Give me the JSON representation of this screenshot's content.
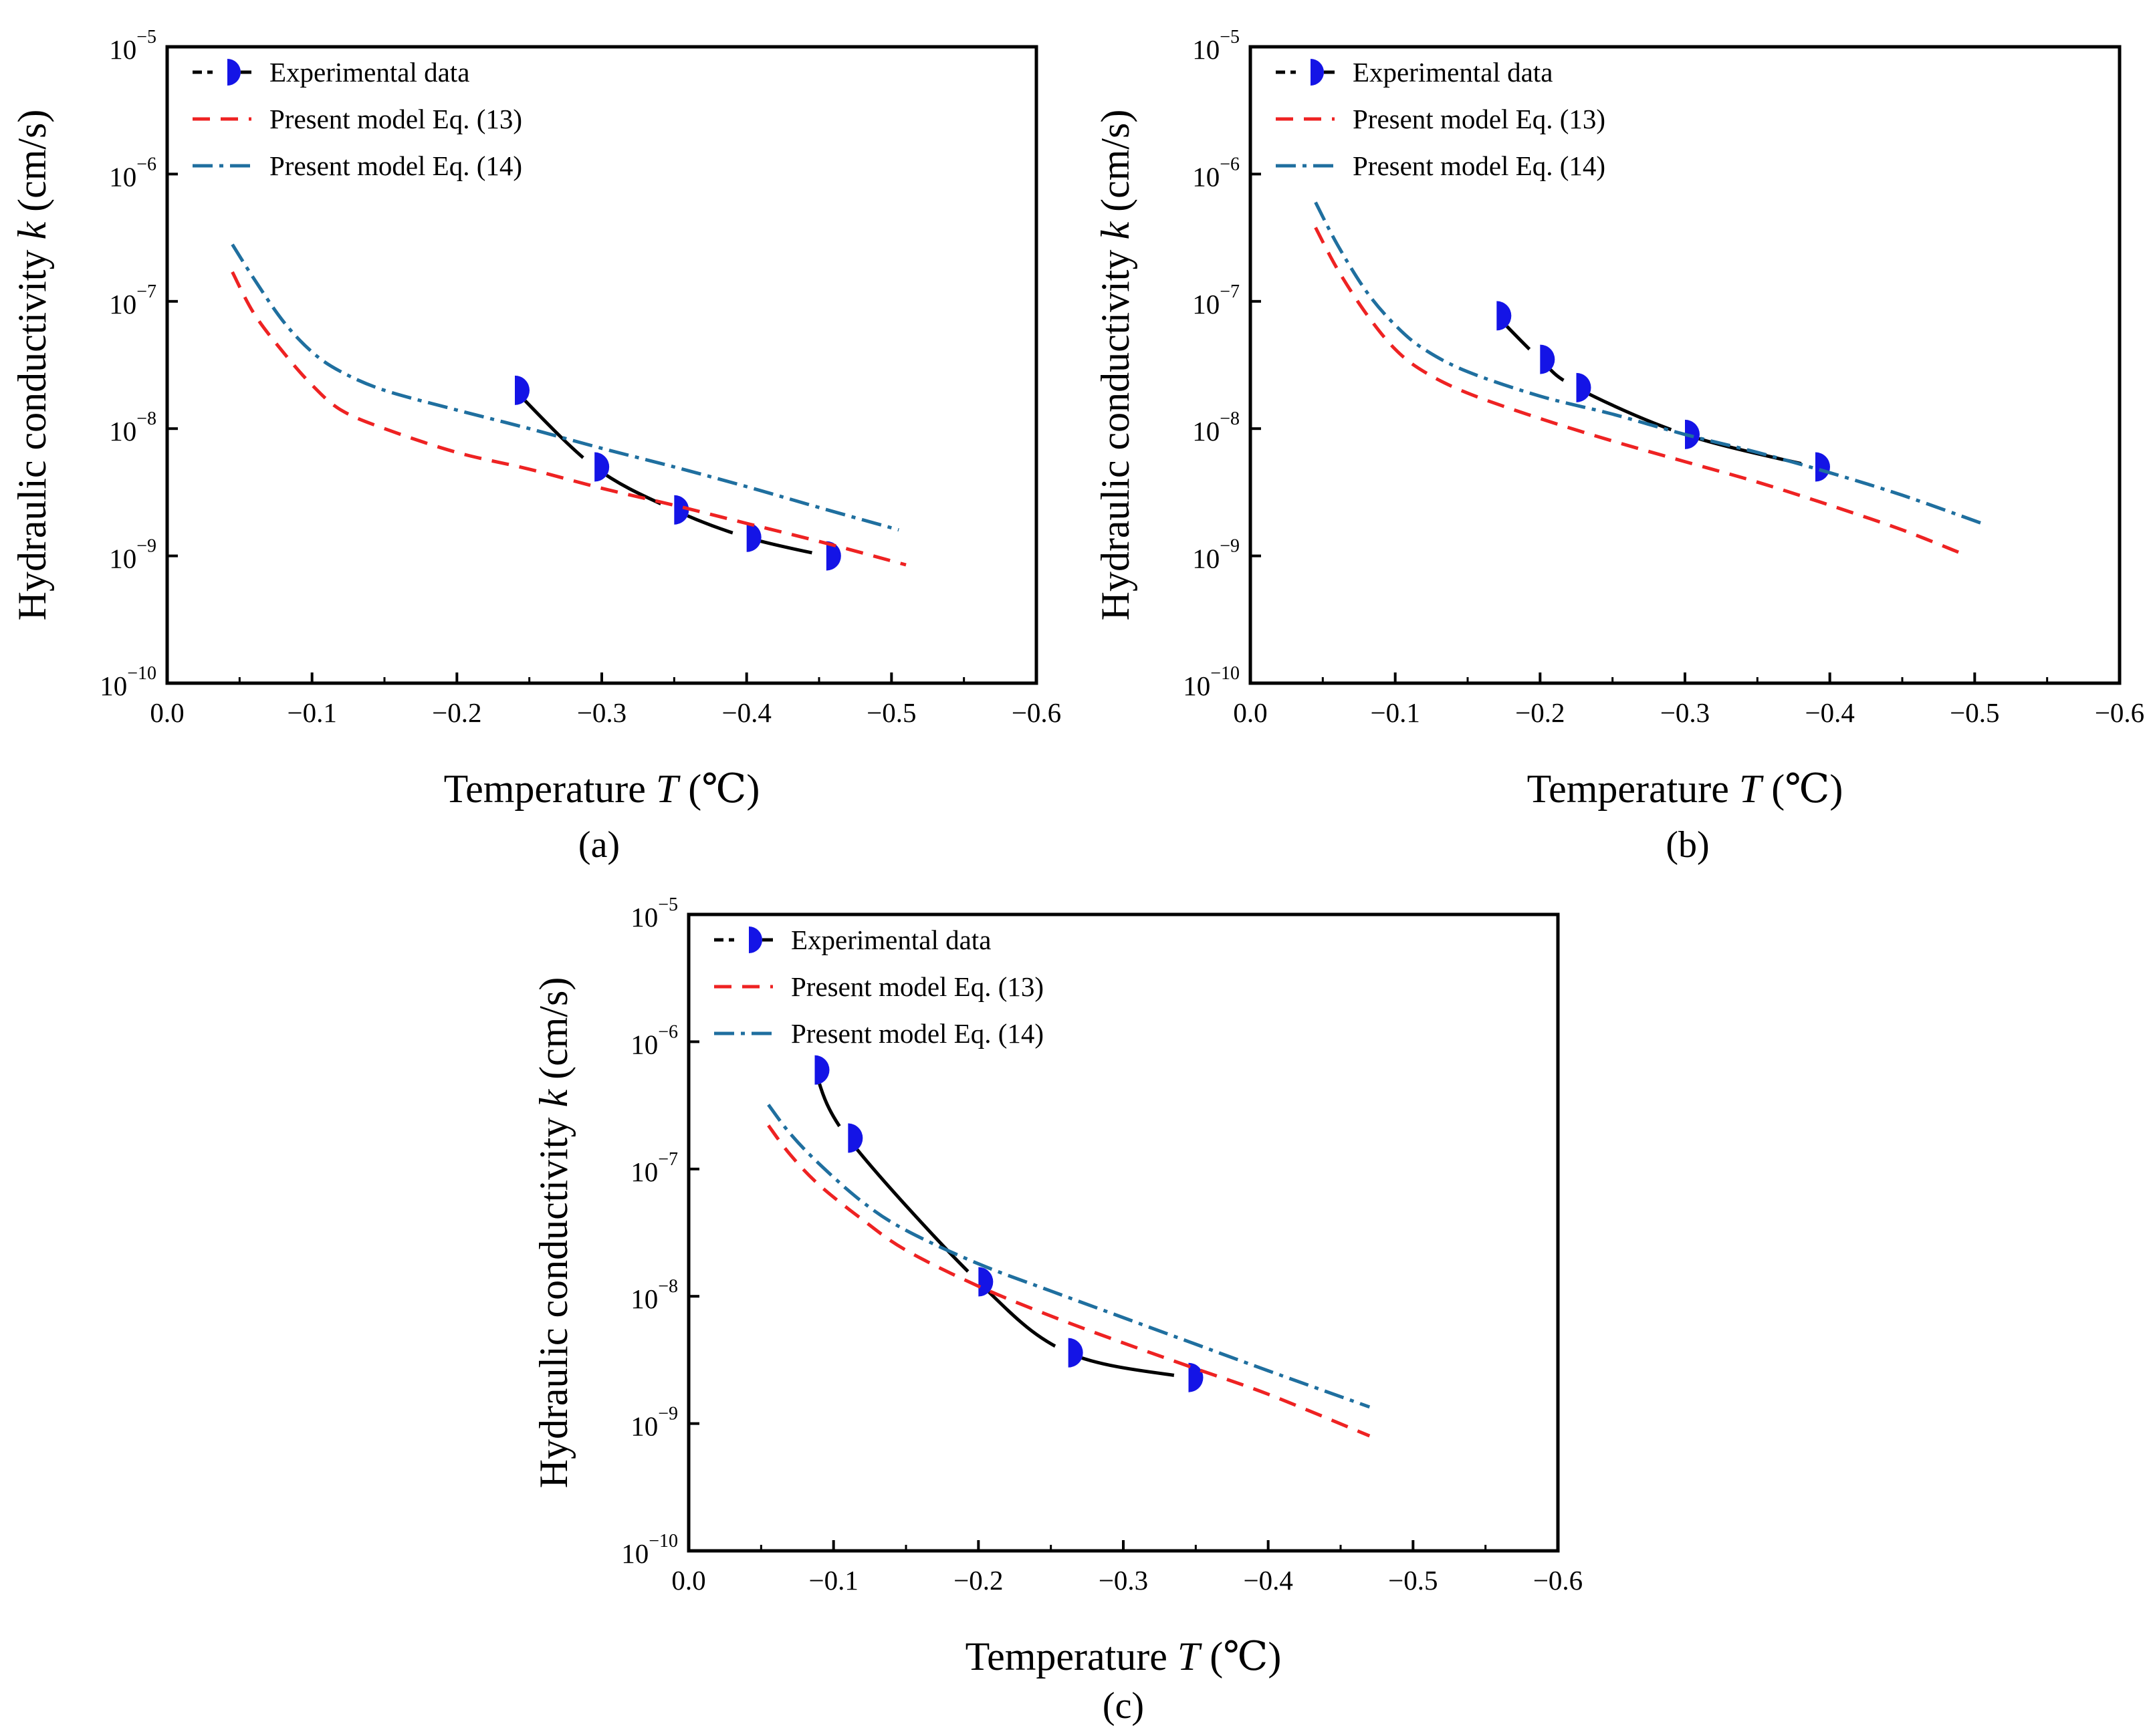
{
  "figure": {
    "panels": [
      "(a)",
      "(b)",
      "(c)"
    ]
  },
  "chart_data": [
    {
      "panel": "(a)",
      "type": "line",
      "xlabel": "Temperature T (℃)",
      "ylabel": "Hydraulic conductivity k (cm/s)",
      "x_ticks": [
        "0.0",
        "−0.1",
        "−0.2",
        "−0.3",
        "−0.4",
        "−0.5",
        "−0.6"
      ],
      "y_ticks": [
        "−10",
        "−9",
        "−8",
        "−7",
        "−6",
        "−5"
      ],
      "xlim": [
        0,
        -0.6
      ],
      "ylim": [
        1e-10,
        1e-05
      ],
      "y_scale": "log",
      "legend": {
        "placement": "top-left"
      },
      "series": [
        {
          "name": "Experimental data",
          "style": "solid-line-half-filled-circle",
          "color": "#000000",
          "marker_color": "#1414e6",
          "x": [
            -0.24,
            -0.295,
            -0.35,
            -0.4,
            -0.455
          ],
          "y": [
            2e-08,
            5e-09,
            2.3e-09,
            1.4e-09,
            1e-09
          ]
        },
        {
          "name": "Present model Eq. (13)",
          "style": "dashed",
          "color": "#ee2222",
          "x": [
            -0.045,
            -0.06,
            -0.08,
            -0.1,
            -0.12,
            -0.15,
            -0.2,
            -0.25,
            -0.3,
            -0.35,
            -0.4,
            -0.45,
            -0.51
          ],
          "y": [
            1.7e-07,
            8e-08,
            4e-08,
            2.2e-08,
            1.4e-08,
            1e-08,
            6.5e-09,
            4.8e-09,
            3.4e-09,
            2.5e-09,
            1.8e-09,
            1.3e-09,
            8.5e-10
          ]
        },
        {
          "name": "Present model Eq. (14)",
          "style": "dash-dot",
          "color": "#1f6f9f",
          "x": [
            -0.045,
            -0.06,
            -0.08,
            -0.1,
            -0.12,
            -0.15,
            -0.2,
            -0.25,
            -0.3,
            -0.35,
            -0.4,
            -0.45,
            -0.505
          ],
          "y": [
            2.8e-07,
            1.5e-07,
            7e-08,
            4e-08,
            2.8e-08,
            2e-08,
            1.4e-08,
            1e-08,
            7e-09,
            5e-09,
            3.5e-09,
            2.4e-09,
            1.6e-09
          ]
        }
      ]
    },
    {
      "panel": "(b)",
      "type": "line",
      "xlabel": "Temperature T (℃)",
      "ylabel": "Hydraulic conductivity k (cm/s)",
      "x_ticks": [
        "0.0",
        "−0.1",
        "−0.2",
        "−0.3",
        "−0.4",
        "−0.5",
        "−0.6"
      ],
      "y_ticks": [
        "−10",
        "−9",
        "−8",
        "−7",
        "−6",
        "−5"
      ],
      "xlim": [
        0,
        -0.6
      ],
      "ylim": [
        1e-10,
        1e-05
      ],
      "y_scale": "log",
      "legend": {
        "placement": "top-left"
      },
      "series": [
        {
          "name": "Experimental data",
          "style": "solid-line-half-filled-circle",
          "color": "#000000",
          "marker_color": "#1414e6",
          "x": [
            -0.17,
            -0.2,
            -0.225,
            -0.3,
            -0.39
          ],
          "y": [
            7.7e-08,
            3.5e-08,
            2.1e-08,
            9e-09,
            5e-09
          ]
        },
        {
          "name": "Present model Eq. (13)",
          "style": "dashed",
          "color": "#ee2222",
          "x": [
            -0.045,
            -0.06,
            -0.08,
            -0.1,
            -0.12,
            -0.15,
            -0.2,
            -0.25,
            -0.3,
            -0.35,
            -0.4,
            -0.45,
            -0.495
          ],
          "y": [
            3.8e-07,
            1.8e-07,
            8e-08,
            4.2e-08,
            2.8e-08,
            1.9e-08,
            1.2e-08,
            8e-09,
            5.5e-09,
            3.8e-09,
            2.5e-09,
            1.6e-09,
            1e-09
          ]
        },
        {
          "name": "Present model Eq. (14)",
          "style": "dash-dot",
          "color": "#1f6f9f",
          "x": [
            -0.045,
            -0.06,
            -0.08,
            -0.1,
            -0.12,
            -0.15,
            -0.2,
            -0.25,
            -0.3,
            -0.35,
            -0.4,
            -0.45,
            -0.505
          ],
          "y": [
            6e-07,
            2.8e-07,
            1.2e-07,
            6.5e-08,
            4.2e-08,
            2.8e-08,
            1.8e-08,
            1.3e-08,
            9e-09,
            6.5e-09,
            4.5e-09,
            3e-09,
            1.8e-09
          ]
        }
      ]
    },
    {
      "panel": "(c)",
      "type": "line",
      "xlabel": "Temperature T (℃)",
      "ylabel": "Hydraulic conductivity k (cm/s)",
      "x_ticks": [
        "0.0",
        "−0.1",
        "−0.2",
        "−0.3",
        "−0.4",
        "−0.5",
        "−0.6"
      ],
      "y_ticks": [
        "−10",
        "−9",
        "−8",
        "−7",
        "−6",
        "−5"
      ],
      "xlim": [
        0,
        -0.6
      ],
      "ylim": [
        1e-10,
        1e-05
      ],
      "y_scale": "log",
      "legend": {
        "placement": "top-left"
      },
      "series": [
        {
          "name": "Experimental data",
          "style": "solid-line-half-filled-circle",
          "color": "#000000",
          "marker_color": "#1414e6",
          "x": [
            -0.087,
            -0.11,
            -0.2,
            -0.262,
            -0.345
          ],
          "y": [
            6e-07,
            1.75e-07,
            1.3e-08,
            3.6e-09,
            2.3e-09
          ]
        },
        {
          "name": "Present model Eq. (13)",
          "style": "dashed",
          "color": "#ee2222",
          "x": [
            -0.055,
            -0.07,
            -0.09,
            -0.12,
            -0.15,
            -0.2,
            -0.25,
            -0.3,
            -0.35,
            -0.4,
            -0.47
          ],
          "y": [
            2.2e-07,
            1.3e-07,
            7.5e-08,
            4e-08,
            2.3e-08,
            1.2e-08,
            7e-09,
            4.3e-09,
            2.7e-09,
            1.7e-09,
            8e-10
          ]
        },
        {
          "name": "Present model Eq. (14)",
          "style": "dash-dot",
          "color": "#1f6f9f",
          "x": [
            -0.055,
            -0.07,
            -0.09,
            -0.12,
            -0.15,
            -0.2,
            -0.25,
            -0.3,
            -0.35,
            -0.4,
            -0.47
          ],
          "y": [
            3.2e-07,
            1.9e-07,
            1.1e-07,
            5.5e-08,
            3.3e-08,
            1.8e-08,
            1.1e-08,
            6.8e-09,
            4.2e-09,
            2.6e-09,
            1.35e-09
          ]
        }
      ]
    }
  ]
}
